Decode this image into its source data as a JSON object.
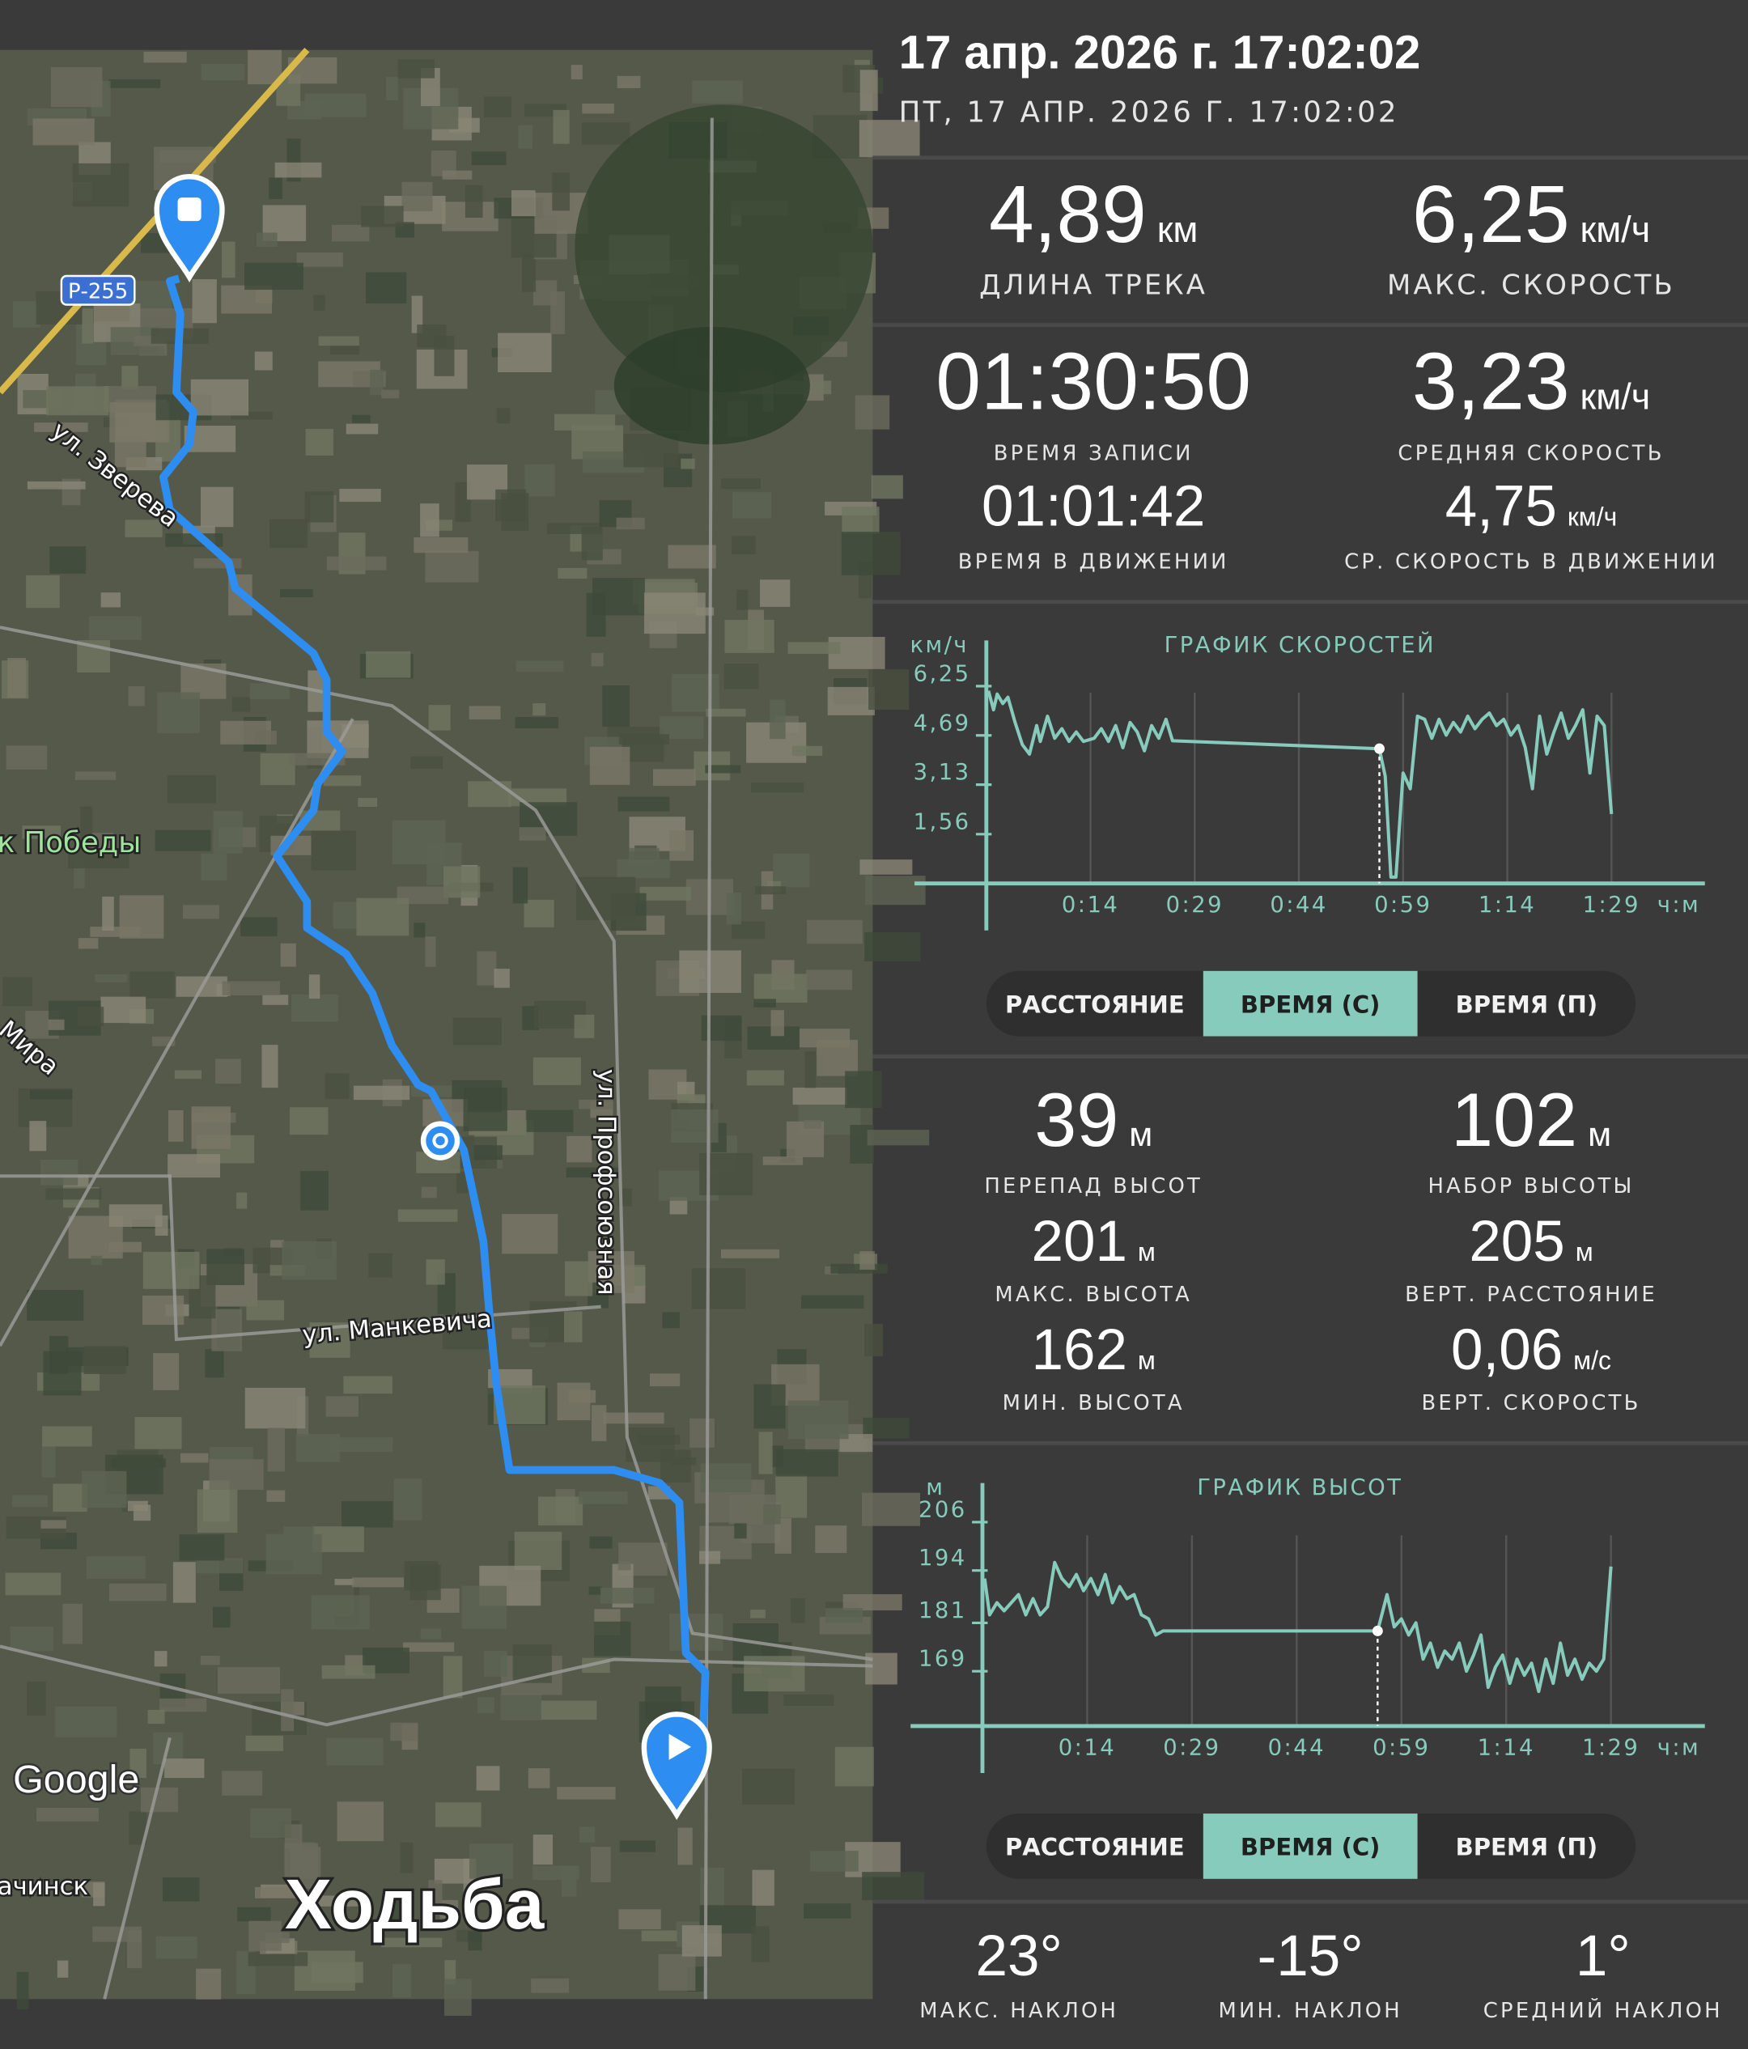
{
  "header": {
    "title": "17 апр. 2026 г. 17:02:02",
    "subtitle": "ПТ, 17 АПР. 2026 Г. 17:02:02"
  },
  "map": {
    "road_badge": "Р-255",
    "street_1": "ул. Зверева",
    "park": "к Победы",
    "street_2": "Мира",
    "street_3": "ул. Профсоюзная",
    "street_4": "ул. Манкевича",
    "provider": "Google",
    "town": "ачинск",
    "activity": "Ходьба"
  },
  "speed_stats": [
    {
      "value": "4,89",
      "unit": "км",
      "label": "ДЛИНА ТРЕКА"
    },
    {
      "value": "6,25",
      "unit": "км/ч",
      "label": "МАКС. СКОРОСТЬ"
    },
    {
      "value": "01:30:50",
      "label": "ВРЕМЯ ЗАПИСИ"
    },
    {
      "value": "3,23",
      "unit": "км/ч",
      "label": "СРЕДНЯЯ СКОРОСТЬ"
    },
    {
      "value": "01:01:42",
      "label": "ВРЕМЯ В ДВИЖЕНИИ"
    },
    {
      "value": "4,75",
      "unit": "км/ч",
      "label": "СР. СКОРОСТЬ В ДВИЖЕНИИ"
    }
  ],
  "speed_chart": {
    "type": "line",
    "title": "ГРАФИК СКОРОСТЕЙ",
    "y_unit": "км/ч",
    "x_unit": "ч:м",
    "color": "#86cbbb",
    "xlim": [
      0,
      100
    ],
    "ylim": [
      0,
      7.7
    ],
    "xticks": [
      {
        "value": 14.5,
        "label": "0:14"
      },
      {
        "value": 29,
        "label": "0:29"
      },
      {
        "value": 43.5,
        "label": "0:44"
      },
      {
        "value": 58,
        "label": "0:59"
      },
      {
        "value": 72.5,
        "label": "1:14"
      },
      {
        "value": 87,
        "label": "1:29"
      }
    ],
    "yticks": [
      {
        "value": 1.56,
        "label": "1,56"
      },
      {
        "value": 3.13,
        "label": "3,13"
      },
      {
        "value": 4.69,
        "label": "4,69"
      },
      {
        "value": 6.25,
        "label": "6,25"
      }
    ],
    "x": [
      0.3,
      1,
      1.5,
      2.3,
      3,
      4,
      5,
      6,
      7,
      7.5,
      8.5,
      9.5,
      10.5,
      11.5,
      12.5,
      13.5,
      15,
      16,
      17,
      18,
      19,
      20,
      21,
      22,
      23,
      24,
      25,
      25.9,
      54.7,
      55.5,
      56.3,
      57,
      58,
      59,
      60,
      61,
      62,
      63,
      64,
      65,
      66,
      67,
      68,
      69,
      70,
      71,
      72,
      73,
      74,
      75,
      76,
      77,
      78,
      79,
      80,
      81,
      82,
      83,
      84,
      85,
      86,
      87
    ],
    "values": [
      6.1,
      5.5,
      6.0,
      5.7,
      5.9,
      5.1,
      4.4,
      4.1,
      5.0,
      4.5,
      5.3,
      4.6,
      4.9,
      4.5,
      4.8,
      4.5,
      4.6,
      4.9,
      4.5,
      5.0,
      4.3,
      5.1,
      4.8,
      4.2,
      5.0,
      4.6,
      5.2,
      4.52,
      4.27,
      3.4,
      0.2,
      0.2,
      3.5,
      3.0,
      5.3,
      5.2,
      4.6,
      5.2,
      4.7,
      5.1,
      4.8,
      5.3,
      4.9,
      5.2,
      5.4,
      5.0,
      5.2,
      4.7,
      5.0,
      4.3,
      3.0,
      5.3,
      4.1,
      4.8,
      5.4,
      4.6,
      5.0,
      5.5,
      3.5,
      5.3,
      5.0,
      2.2
    ],
    "cursor_index": 28,
    "toggle": {
      "options": [
        "РАССТОЯНИЕ",
        "ВРЕМЯ (С)",
        "ВРЕМЯ (П)"
      ],
      "selected": 1
    }
  },
  "elevation_stats": [
    {
      "value": "39",
      "unit": "м",
      "label": "ПЕРЕПАД ВЫСОТ"
    },
    {
      "value": "102",
      "unit": "м",
      "label": "НАБОР ВЫСОТЫ"
    },
    {
      "value": "201",
      "unit": "м",
      "label": "МАКС. ВЫСОТА"
    },
    {
      "value": "205",
      "unit": "м",
      "label": "ВЕРТ. РАССТОЯНИЕ"
    },
    {
      "value": "162",
      "unit": "м",
      "label": "МИН. ВЫСОТА"
    },
    {
      "value": "0,06",
      "unit": "м/с",
      "label": "ВЕРТ. СКОРОСТЬ"
    }
  ],
  "elevation_chart": {
    "type": "line",
    "title": "ГРАФИК ВЫСОТ",
    "y_unit": "м",
    "x_unit": "ч:м",
    "color": "#86cbbb",
    "xlim": [
      0,
      100
    ],
    "ylim": [
      155.4,
      215.7
    ],
    "xticks": [
      {
        "value": 14.5,
        "label": "0:14"
      },
      {
        "value": 29,
        "label": "0:29"
      },
      {
        "value": 43.5,
        "label": "0:44"
      },
      {
        "value": 58,
        "label": "0:59"
      },
      {
        "value": 72.5,
        "label": "1:14"
      },
      {
        "value": 87,
        "label": "1:29"
      }
    ],
    "yticks": [
      169,
      181,
      194,
      206
    ],
    "x": [
      0.3,
      1,
      2,
      3,
      4,
      5,
      6,
      7,
      8,
      9,
      10,
      11,
      12,
      13,
      14,
      15,
      16,
      17,
      18,
      19,
      20,
      21,
      22,
      23,
      24,
      25,
      54.7,
      56,
      57,
      58,
      59,
      60,
      61,
      62,
      63,
      64,
      65,
      66,
      67,
      68,
      69,
      70,
      71,
      72,
      73,
      74,
      75,
      76,
      77,
      78,
      79,
      80,
      81,
      82,
      83,
      84,
      85,
      86,
      87
    ],
    "values": [
      192,
      183,
      186,
      184,
      186,
      188,
      183,
      187,
      183,
      185,
      196,
      192,
      190,
      193,
      189,
      192,
      188,
      193,
      186,
      190,
      187,
      188,
      183,
      182,
      178,
      179,
      179,
      188,
      180,
      182,
      178,
      181,
      172,
      176,
      170,
      174,
      172,
      176,
      169,
      173,
      178,
      165,
      170,
      173,
      166,
      172,
      168,
      171,
      164,
      172,
      166,
      176,
      168,
      172,
      167,
      171,
      169,
      172,
      195
    ],
    "cursor_index": 26,
    "toggle": {
      "options": [
        "РАССТОЯНИЕ",
        "ВРЕМЯ (С)",
        "ВРЕМЯ (П)"
      ],
      "selected": 1
    }
  },
  "slope_stats": [
    {
      "value": "23°",
      "label": "МАКС. НАКЛОН"
    },
    {
      "value": "-15°",
      "label": "МИН. НАКЛОН"
    },
    {
      "value": "1°",
      "label": "СРЕДНИЙ НАКЛОН"
    }
  ]
}
